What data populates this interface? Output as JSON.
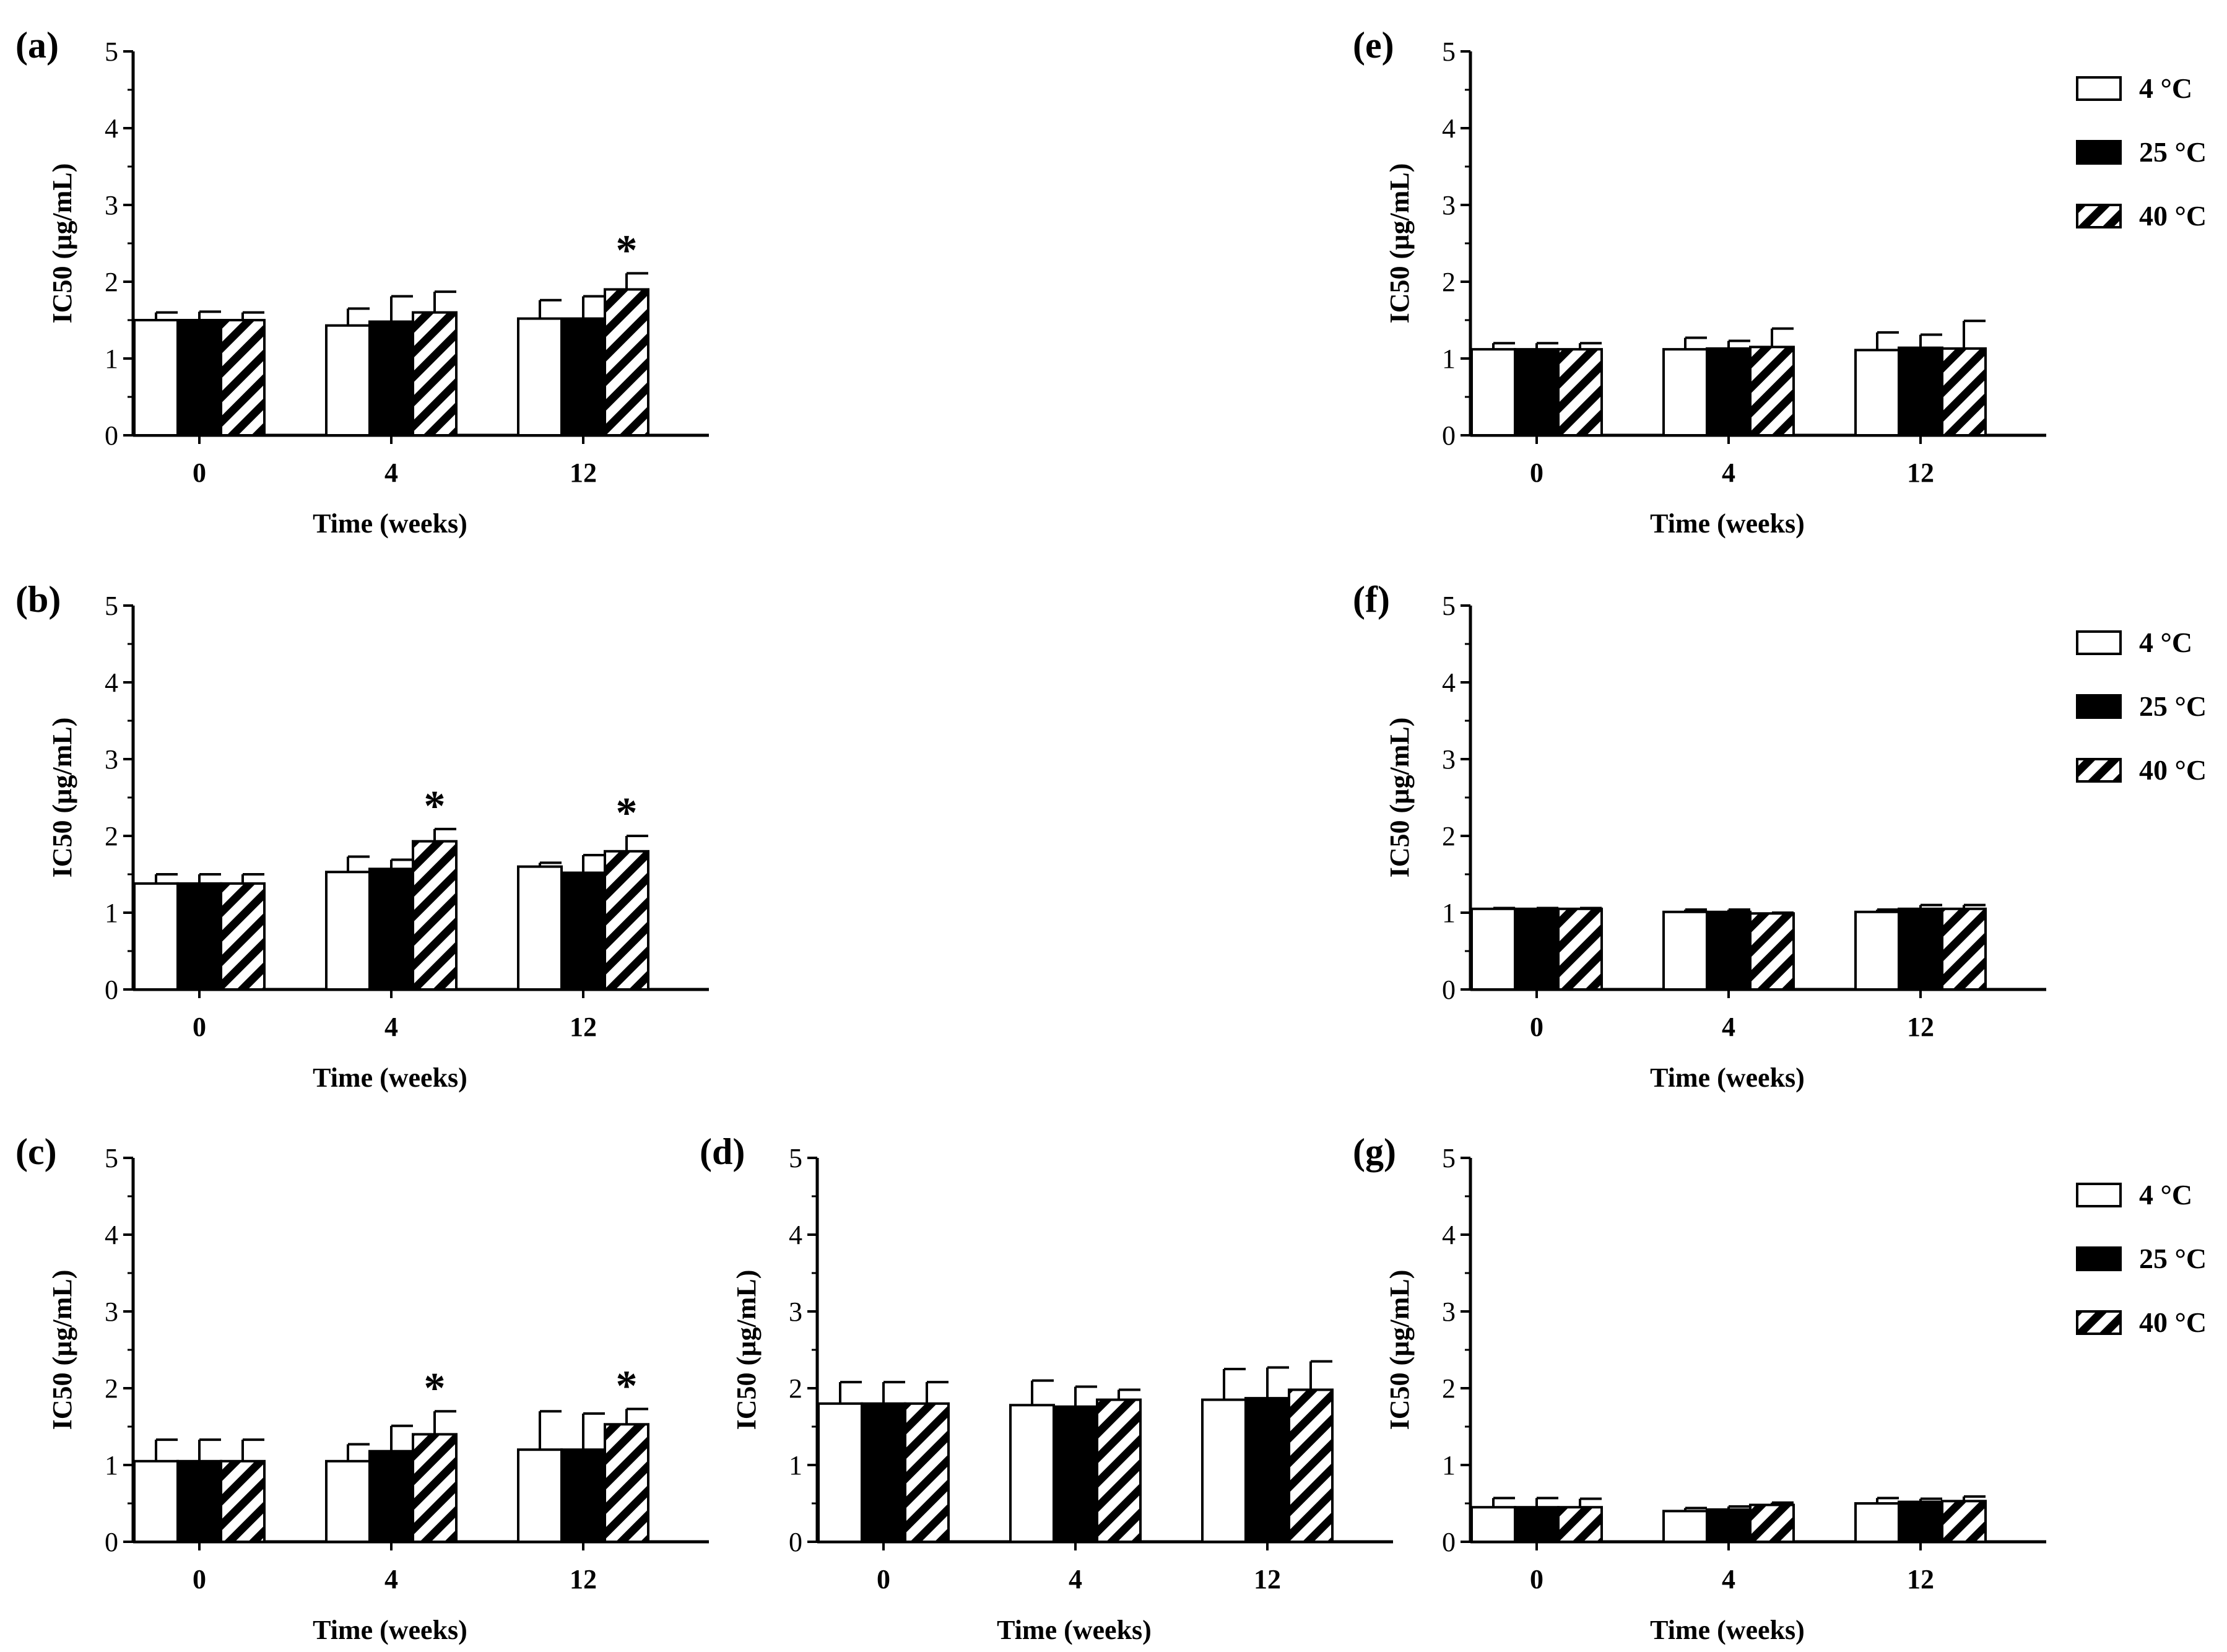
{
  "chart_data": [
    {
      "panel": "(a)",
      "type": "bar",
      "categories": [
        "0",
        "4",
        "12"
      ],
      "series": [
        {
          "name": "4 °C",
          "values": [
            1.5,
            1.43,
            1.52
          ],
          "errors": [
            0.1,
            0.22,
            0.24
          ]
        },
        {
          "name": "25 °C",
          "values": [
            1.5,
            1.48,
            1.52
          ],
          "errors": [
            0.11,
            0.33,
            0.29
          ]
        },
        {
          "name": "40 °C",
          "values": [
            1.5,
            1.6,
            1.9
          ],
          "errors": [
            0.1,
            0.27,
            0.21
          ]
        }
      ],
      "significance": [
        [],
        [],
        [
          "40 °C"
        ]
      ],
      "xlabel": "Time (weeks)",
      "ylabel": "IC50 (µg/mL)",
      "ylim": [
        0,
        5
      ],
      "yticks": [
        "0",
        "1",
        "2",
        "3",
        "4",
        "5"
      ]
    },
    {
      "panel": "(b)",
      "type": "bar",
      "categories": [
        "0",
        "4",
        "12"
      ],
      "series": [
        {
          "name": "4 °C",
          "values": [
            1.38,
            1.53,
            1.6
          ],
          "errors": [
            0.12,
            0.2,
            0.05
          ]
        },
        {
          "name": "25 °C",
          "values": [
            1.38,
            1.57,
            1.52
          ],
          "errors": [
            0.12,
            0.12,
            0.23
          ]
        },
        {
          "name": "40 °C",
          "values": [
            1.38,
            1.93,
            1.8
          ],
          "errors": [
            0.12,
            0.16,
            0.2
          ]
        }
      ],
      "significance": [
        [],
        [
          "40 °C"
        ],
        [
          "40 °C"
        ]
      ],
      "xlabel": "Time (weeks)",
      "ylabel": "IC50 (µg/mL)",
      "ylim": [
        0,
        5
      ],
      "yticks": [
        "0",
        "1",
        "2",
        "3",
        "4",
        "5"
      ]
    },
    {
      "panel": "(c)",
      "type": "bar",
      "categories": [
        "0",
        "4",
        "12"
      ],
      "series": [
        {
          "name": "4 °C",
          "values": [
            1.05,
            1.05,
            1.2
          ],
          "errors": [
            0.28,
            0.22,
            0.5
          ]
        },
        {
          "name": "25 °C",
          "values": [
            1.05,
            1.18,
            1.2
          ],
          "errors": [
            0.28,
            0.33,
            0.47
          ]
        },
        {
          "name": "40 °C",
          "values": [
            1.05,
            1.4,
            1.53
          ],
          "errors": [
            0.28,
            0.3,
            0.2
          ]
        }
      ],
      "significance": [
        [],
        [
          "40 °C"
        ],
        [
          "40 °C"
        ]
      ],
      "xlabel": "Time (weeks)",
      "ylabel": "IC50 (µg/mL)",
      "ylim": [
        0,
        5
      ],
      "yticks": [
        "0",
        "1",
        "2",
        "3",
        "4",
        "5"
      ]
    },
    {
      "panel": "(d)",
      "type": "bar",
      "categories": [
        "0",
        "4",
        "12"
      ],
      "series": [
        {
          "name": "4 °C",
          "values": [
            1.8,
            1.78,
            1.85
          ],
          "errors": [
            0.28,
            0.32,
            0.4
          ]
        },
        {
          "name": "25 °C",
          "values": [
            1.8,
            1.76,
            1.87
          ],
          "errors": [
            0.28,
            0.26,
            0.4
          ]
        },
        {
          "name": "40 °C",
          "values": [
            1.8,
            1.85,
            1.98
          ],
          "errors": [
            0.28,
            0.13,
            0.37
          ]
        }
      ],
      "significance": [
        [],
        [],
        []
      ],
      "xlabel": "Time (weeks)",
      "ylabel": "IC50 (µg/mL)",
      "ylim": [
        0,
        5
      ],
      "yticks": [
        "0",
        "1",
        "2",
        "3",
        "4",
        "5"
      ]
    },
    {
      "panel": "(e)",
      "type": "bar",
      "categories": [
        "0",
        "4",
        "12"
      ],
      "series": [
        {
          "name": "4 °C",
          "values": [
            1.12,
            1.12,
            1.11
          ],
          "errors": [
            0.08,
            0.15,
            0.23
          ]
        },
        {
          "name": "25 °C",
          "values": [
            1.12,
            1.13,
            1.14
          ],
          "errors": [
            0.08,
            0.1,
            0.17
          ]
        },
        {
          "name": "40 °C",
          "values": [
            1.12,
            1.15,
            1.13
          ],
          "errors": [
            0.08,
            0.24,
            0.36
          ]
        }
      ],
      "significance": [
        [],
        [],
        []
      ],
      "xlabel": "Time (weeks)",
      "ylabel": "IC50 (µg/mL)",
      "ylim": [
        0,
        5
      ],
      "yticks": [
        "0",
        "1",
        "2",
        "3",
        "4",
        "5"
      ],
      "legend": [
        "4 °C",
        "25 °C",
        "40 °C"
      ]
    },
    {
      "panel": "(f)",
      "type": "bar",
      "categories": [
        "0",
        "4",
        "12"
      ],
      "series": [
        {
          "name": "4 °C",
          "values": [
            1.05,
            1.01,
            1.01
          ],
          "errors": [
            0.01,
            0.03,
            0.03
          ]
        },
        {
          "name": "25 °C",
          "values": [
            1.05,
            1.01,
            1.05
          ],
          "errors": [
            0.01,
            0.03,
            0.05
          ]
        },
        {
          "name": "40 °C",
          "values": [
            1.05,
            0.99,
            1.05
          ],
          "errors": [
            0.01,
            0.01,
            0.05
          ]
        }
      ],
      "significance": [
        [],
        [],
        []
      ],
      "xlabel": "Time (weeks)",
      "ylabel": "IC50 (µg/mL)",
      "ylim": [
        0,
        5
      ],
      "yticks": [
        "0",
        "1",
        "2",
        "3",
        "4",
        "5"
      ],
      "legend": [
        "4 °C",
        "25 °C",
        "40 °C"
      ]
    },
    {
      "panel": "(g)",
      "type": "bar",
      "categories": [
        "0",
        "4",
        "12"
      ],
      "series": [
        {
          "name": "4 °C",
          "values": [
            0.45,
            0.4,
            0.5
          ],
          "errors": [
            0.12,
            0.04,
            0.07
          ]
        },
        {
          "name": "25 °C",
          "values": [
            0.45,
            0.42,
            0.52
          ],
          "errors": [
            0.12,
            0.04,
            0.04
          ]
        },
        {
          "name": "40 °C",
          "values": [
            0.45,
            0.48,
            0.53
          ],
          "errors": [
            0.11,
            0.03,
            0.06
          ]
        }
      ],
      "significance": [
        [],
        [],
        []
      ],
      "xlabel": "Time (weeks)",
      "ylabel": "IC50 (µg/mL)",
      "ylim": [
        0,
        5
      ],
      "yticks": [
        "0",
        "1",
        "2",
        "3",
        "4",
        "5"
      ],
      "legend": [
        "4 °C",
        "25 °C",
        "40 °C"
      ]
    }
  ],
  "significance_symbol": "*",
  "colors": {
    "4 °C": "#ffffff",
    "25 °C": "#000000",
    "40 °C": "hatch",
    "outline": "#000000"
  }
}
